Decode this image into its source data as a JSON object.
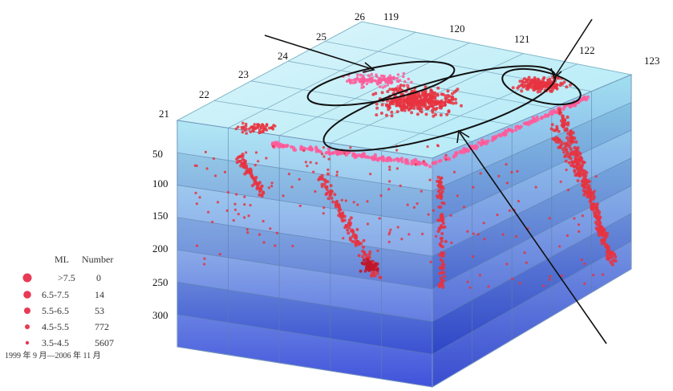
{
  "lat_labels": [
    "21",
    "22",
    "23",
    "24",
    "25",
    "26"
  ],
  "lon_labels": [
    "119",
    "120",
    "121",
    "122",
    "123"
  ],
  "depth_labels": [
    "50",
    "100",
    "150",
    "200",
    "250",
    "300"
  ],
  "legend": {
    "header_ml": "ML",
    "header_number": "Number",
    "rows": [
      {
        "ml": ">7.5",
        "number": "0"
      },
      {
        "ml": "6.5-7.5",
        "number": "14"
      },
      {
        "ml": "5.5-6.5",
        "number": "53"
      },
      {
        "ml": "4.5-5.5",
        "number": "772"
      },
      {
        "ml": "3.5-4.5",
        "number": "5607"
      }
    ],
    "period": "1999 年 9 月—2006 年 11 月"
  },
  "colors": {
    "quake": "#e8323f",
    "quake_dark": "#c0162a",
    "surface_pink": "#ff5a9a",
    "legend_dot": "#e83a55",
    "band_top": "#9fe3f3",
    "band_bottom": "#2a3fd6",
    "annotation": "#111111"
  }
}
